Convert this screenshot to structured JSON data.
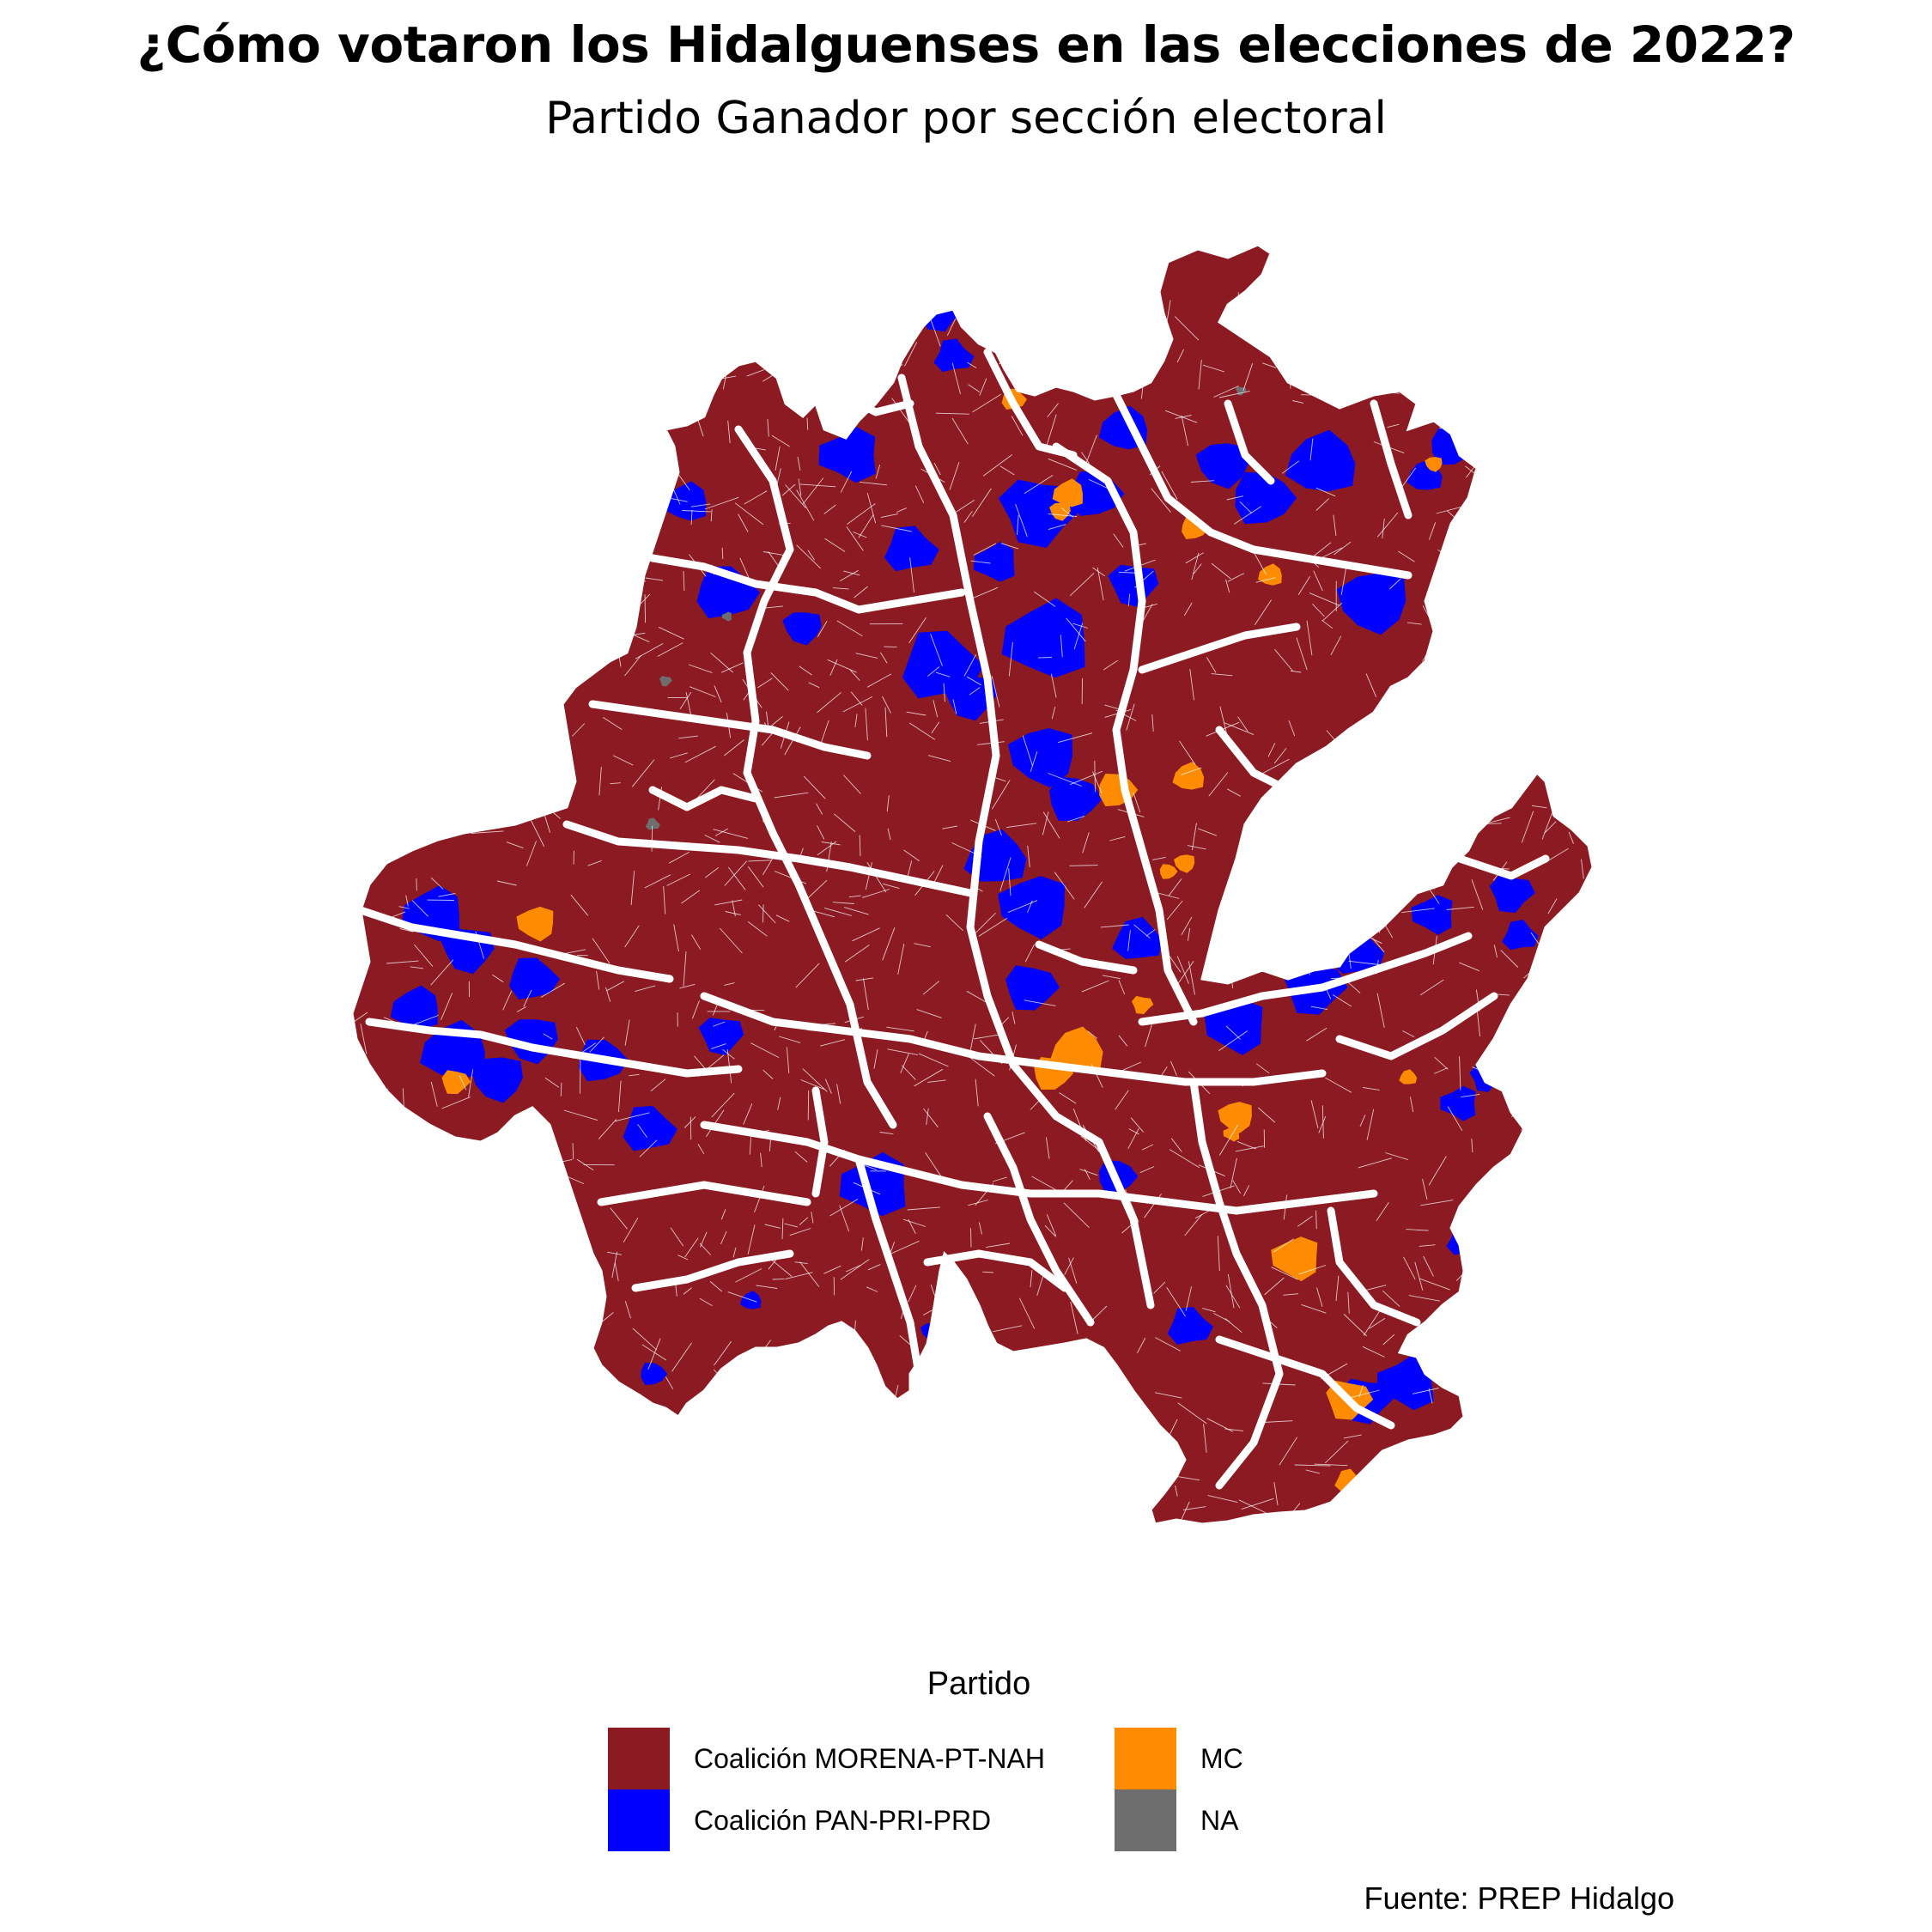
{
  "title": "¿Cómo votaron los Hidalguenses en las elecciones de 2022?",
  "subtitle": "Partido Ganador por sección electoral",
  "legend": {
    "title": "Partido",
    "items": [
      {
        "label": "Coalición MORENA-PT-NAH",
        "color": "#8B1A22"
      },
      {
        "label": "Coalición PAN-PRI-PRD",
        "color": "#0000FF"
      },
      {
        "label": "MC",
        "color": "#FF8C00"
      },
      {
        "label": "NA",
        "color": "#6E6E6E"
      }
    ]
  },
  "caption": "Fuente: PREP Hidalgo",
  "colors": {
    "morena": "#8B1A22",
    "pan_pri_prd": "#0000FF",
    "mc": "#FF8C00",
    "na": "#6E6E6E",
    "boundary": "#FFFFFF"
  }
}
